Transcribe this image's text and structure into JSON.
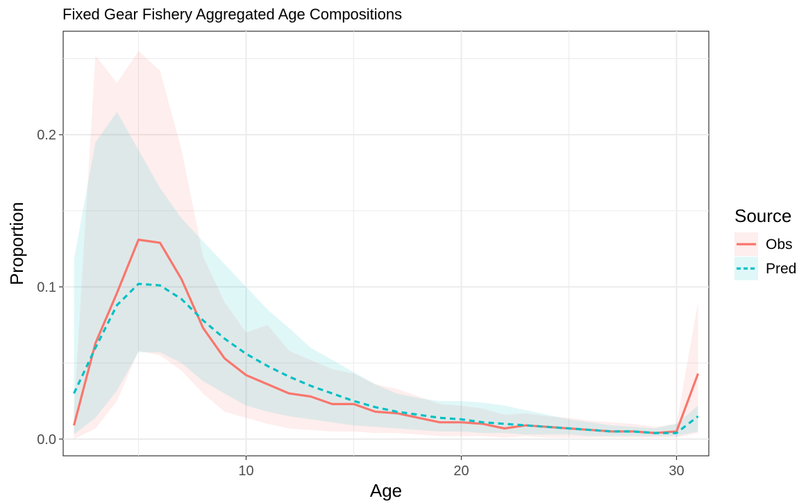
{
  "chart_data": {
    "type": "line",
    "title": "Fixed Gear Fishery Aggregated Age Compositions",
    "xlabel": "Age",
    "ylabel": "Proportion",
    "xlim": [
      1.5,
      31.5
    ],
    "ylim": [
      -0.011,
      0.268
    ],
    "x_ticks": [
      10,
      20,
      30
    ],
    "x_tick_labels": [
      "10",
      "20",
      "30"
    ],
    "y_ticks": [
      0.0,
      0.1,
      0.2
    ],
    "y_tick_labels": [
      "0.0",
      "0.1",
      "0.2"
    ],
    "grid": true,
    "legend": {
      "title": "Source",
      "position": "right"
    },
    "x": [
      2,
      3,
      4,
      5,
      6,
      7,
      8,
      9,
      10,
      11,
      12,
      13,
      14,
      15,
      16,
      17,
      18,
      19,
      20,
      21,
      22,
      23,
      24,
      25,
      26,
      27,
      28,
      29,
      30,
      31
    ],
    "series": [
      {
        "name": "Obs",
        "color": "#f8766d",
        "line_style": "solid",
        "values": [
          0.009,
          0.063,
          0.096,
          0.131,
          0.129,
          0.105,
          0.073,
          0.053,
          0.042,
          0.036,
          0.03,
          0.028,
          0.023,
          0.023,
          0.018,
          0.017,
          0.014,
          0.011,
          0.011,
          0.01,
          0.007,
          0.009,
          0.008,
          0.007,
          0.006,
          0.005,
          0.005,
          0.004,
          0.005,
          0.043
        ],
        "lower": [
          0.0,
          0.007,
          0.025,
          0.058,
          0.055,
          0.045,
          0.03,
          0.018,
          0.014,
          0.01,
          0.007,
          0.006,
          0.005,
          0.005,
          0.004,
          0.004,
          0.003,
          0.002,
          0.002,
          0.002,
          0.001,
          0.002,
          0.001,
          0.001,
          0.001,
          0.001,
          0.001,
          0.001,
          0.001,
          0.004
        ],
        "upper": [
          0.018,
          0.252,
          0.234,
          0.255,
          0.242,
          0.19,
          0.12,
          0.09,
          0.07,
          0.075,
          0.058,
          0.052,
          0.046,
          0.043,
          0.036,
          0.033,
          0.028,
          0.023,
          0.022,
          0.02,
          0.016,
          0.017,
          0.015,
          0.014,
          0.012,
          0.011,
          0.01,
          0.008,
          0.01,
          0.09
        ]
      },
      {
        "name": "Pred",
        "color": "#00bfc4",
        "line_style": "dashed",
        "values": [
          0.03,
          0.06,
          0.088,
          0.102,
          0.101,
          0.092,
          0.078,
          0.066,
          0.056,
          0.048,
          0.041,
          0.035,
          0.03,
          0.025,
          0.021,
          0.018,
          0.016,
          0.014,
          0.013,
          0.011,
          0.01,
          0.009,
          0.008,
          0.007,
          0.006,
          0.005,
          0.005,
          0.004,
          0.004,
          0.015
        ],
        "lower": [
          0.003,
          0.014,
          0.032,
          0.057,
          0.057,
          0.05,
          0.038,
          0.03,
          0.022,
          0.018,
          0.015,
          0.013,
          0.011,
          0.009,
          0.008,
          0.007,
          0.006,
          0.005,
          0.005,
          0.004,
          0.004,
          0.003,
          0.003,
          0.003,
          0.002,
          0.002,
          0.002,
          0.002,
          0.002,
          0.005
        ],
        "upper": [
          0.118,
          0.195,
          0.215,
          0.19,
          0.165,
          0.145,
          0.13,
          0.115,
          0.1,
          0.085,
          0.073,
          0.06,
          0.052,
          0.044,
          0.036,
          0.03,
          0.027,
          0.025,
          0.025,
          0.024,
          0.022,
          0.019,
          0.016,
          0.013,
          0.011,
          0.009,
          0.008,
          0.007,
          0.01,
          0.022
        ]
      }
    ]
  }
}
